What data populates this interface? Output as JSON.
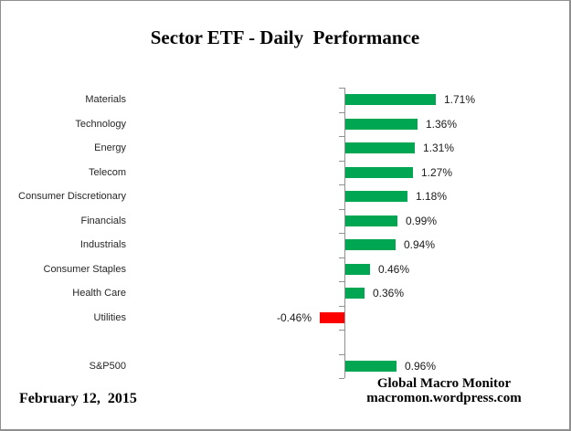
{
  "title": "Sector ETF - Daily  Performance",
  "footer": {
    "date": "February 12,  2015",
    "credit_line1": "Global Macro Monitor",
    "credit_line2": "macromon.wordpress.com"
  },
  "colors": {
    "positive_bar": "#00A651",
    "negative_bar": "#FF0000",
    "axis": "#909090",
    "border": "#8F8F8F",
    "label_text": "#262626"
  },
  "chart_data": {
    "type": "bar",
    "orientation": "horizontal",
    "title": "Sector ETF - Daily Performance",
    "categories": [
      "Materials",
      "Technology",
      "Energy",
      "Telecom",
      "Consumer Discretionary",
      "Financials",
      "Industrials",
      "Consumer Staples",
      "Health Care",
      "Utilities",
      "",
      "S&P500"
    ],
    "values": [
      1.71,
      1.36,
      1.31,
      1.27,
      1.18,
      0.99,
      0.94,
      0.46,
      0.36,
      -0.46,
      null,
      0.96
    ],
    "value_labels": [
      "1.71%",
      "1.36%",
      "1.31%",
      "1.27%",
      "1.18%",
      "0.99%",
      "0.94%",
      "0.46%",
      "0.36%",
      "-0.46%",
      null,
      "0.96%"
    ],
    "unit": "%",
    "baseline": 0,
    "gridlines": false,
    "value_axis_visible": false,
    "positive_color": "#00A651",
    "negative_color": "#FF0000",
    "note": "blank spacer row between Utilities and S&P500"
  }
}
